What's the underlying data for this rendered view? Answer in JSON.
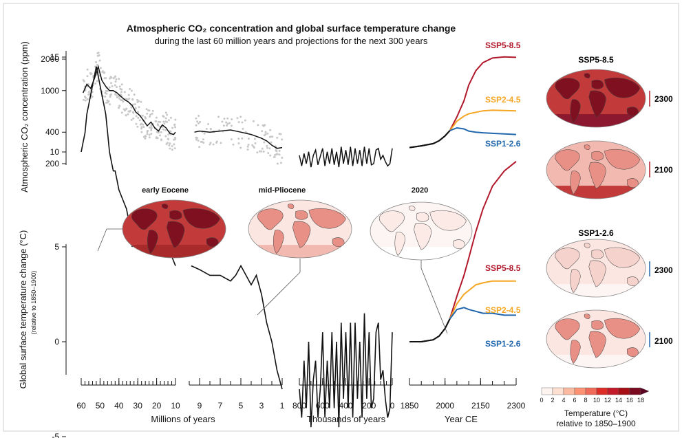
{
  "colors": {
    "ssp585": "#b2182b",
    "ssp245": "#f5a623",
    "ssp126": "#2166ac",
    "line": "#111111",
    "scatter": "#c8c8c8",
    "ocean_warm": "#c33a3a",
    "land_warm": "#7f1020",
    "ocean_mild": "#f2b9b0",
    "land_mild": "#e88f86",
    "ocean_cool": "#fbe6e2",
    "land_cool": "#f5d2cc",
    "ocean_none": "#fdf5f3",
    "land_none": "#fbeae6"
  },
  "figure": {
    "title_line1": "Atmospheric CO₂ concentration and global surface temperature change",
    "title_line2": "during the last 60 million years and projections for the next 300 years",
    "co2_ylabel": "Atmospheric CO₂ concentration (ppm)",
    "temp_ylabel": "Global surface temperature change (°C)",
    "temp_ylabel_sub": "(relative to 1850–1900)",
    "panel_xlabels": [
      "Millions of years",
      "Thousands of years",
      "Year CE"
    ],
    "maps": {
      "early_eocene": "early Eocene",
      "mid_pliocene": "mid-Pliocene",
      "y2020": "2020",
      "ssp585_header": "SSP5-8.5",
      "ssp126_header": "SSP1-2.6",
      "y2300": "2300",
      "y2100": "2100"
    },
    "colorbar": {
      "ticks": [
        "0",
        "2",
        "4",
        "6",
        "8",
        "10",
        "12",
        "14",
        "16",
        "18"
      ],
      "title": "Temperature (°C)",
      "subtitle": "relative to 1850–1900"
    }
  },
  "chart_data": [
    {
      "type": "line",
      "title": "Atmospheric CO₂ concentration and global surface temperature change",
      "subtitle": "during the last 60 million years and projections for the next 300 years",
      "ylabel": "Atmospheric CO₂ concentration (ppm)",
      "yscale": "log",
      "ylim": [
        180,
        2300
      ],
      "yticks": [
        200,
        400,
        1000,
        2000
      ],
      "panels": [
        {
          "xlabel": "Millions of years",
          "xlim": [
            60,
            10
          ],
          "x": [
            59,
            57,
            55,
            53,
            51,
            49,
            47,
            45,
            43,
            41,
            39,
            37,
            35,
            33,
            31,
            29,
            27,
            25,
            23,
            21,
            19,
            17,
            15,
            13,
            11,
            10
          ],
          "y": [
            950,
            1150,
            1050,
            1300,
            1700,
            1250,
            1100,
            1000,
            1000,
            950,
            880,
            820,
            780,
            720,
            620,
            580,
            520,
            460,
            500,
            440,
            410,
            470,
            440,
            390,
            380,
            400
          ],
          "scatter_series": "proxy"
        },
        {
          "xlabel": "Millions of years",
          "xlim": [
            10,
            1
          ],
          "xticks": [
            9,
            7,
            5,
            3,
            1
          ],
          "x": [
            9.5,
            9,
            8,
            7,
            6,
            5,
            4,
            3,
            2.5,
            2,
            1.5,
            1
          ],
          "y": [
            400,
            410,
            400,
            410,
            420,
            400,
            380,
            350,
            330,
            300,
            280,
            285
          ],
          "scatter_series": "proxy"
        },
        {
          "xlabel": "Thousands of years",
          "xlim": [
            800,
            0
          ],
          "xticks": [
            800,
            600,
            400,
            200,
            0
          ],
          "x": [
            800,
            780,
            760,
            740,
            720,
            700,
            680,
            660,
            640,
            620,
            600,
            580,
            560,
            540,
            520,
            500,
            480,
            460,
            440,
            420,
            400,
            380,
            360,
            340,
            320,
            300,
            280,
            260,
            240,
            220,
            200,
            180,
            160,
            140,
            120,
            100,
            80,
            60,
            40,
            20,
            0
          ],
          "y": [
            240,
            190,
            250,
            200,
            260,
            185,
            240,
            270,
            195,
            235,
            280,
            190,
            260,
            200,
            280,
            195,
            260,
            185,
            290,
            200,
            270,
            195,
            290,
            190,
            280,
            200,
            270,
            190,
            290,
            200,
            280,
            195,
            200,
            270,
            280,
            220,
            240,
            210,
            190,
            200,
            280
          ]
        },
        {
          "xlabel": "Year CE",
          "xlim": [
            1850,
            2300
          ],
          "xticks": [
            1850,
            2000,
            2150,
            2300
          ],
          "series": [
            {
              "name": "SSP5-8.5",
              "x": [
                1850,
                1900,
                1950,
                1975,
                2000,
                2020,
                2050,
                2080,
                2100,
                2130,
                2160,
                2200,
                2250,
                2300
              ],
              "y": [
                285,
                296,
                311,
                331,
                369,
                414,
                560,
                800,
                1130,
                1550,
                1850,
                2050,
                2100,
                2080
              ]
            },
            {
              "name": "SSP2-4.5",
              "x": [
                1850,
                1900,
                1950,
                1975,
                2000,
                2020,
                2050,
                2080,
                2100,
                2130,
                2160,
                2200,
                2250,
                2300
              ],
              "y": [
                285,
                296,
                311,
                331,
                369,
                414,
                510,
                570,
                600,
                620,
                640,
                650,
                645,
                640
              ]
            },
            {
              "name": "SSP1-2.6",
              "x": [
                1850,
                1900,
                1950,
                1975,
                2000,
                2020,
                2050,
                2080,
                2100,
                2130,
                2160,
                2200,
                2250,
                2300
              ],
              "y": [
                285,
                296,
                311,
                331,
                369,
                414,
                440,
                430,
                410,
                400,
                395,
                390,
                385,
                380
              ]
            }
          ]
        }
      ]
    },
    {
      "type": "line",
      "ylabel": "Global surface temperature change (°C)",
      "ylabel_sub": "(relative to 1850–1900)",
      "ylim": [
        -5,
        16
      ],
      "yticks": [
        -5,
        0,
        5,
        10,
        15
      ],
      "panels": [
        {
          "xlabel": "Millions of years",
          "xlim": [
            60,
            10
          ],
          "xticks": [
            60,
            50,
            40,
            30,
            20,
            10
          ],
          "x": [
            60,
            59,
            58,
            57,
            56,
            55,
            54,
            53,
            52,
            51,
            50,
            49,
            48,
            47,
            46,
            45,
            44,
            43,
            42,
            41,
            40,
            38,
            36,
            34,
            33,
            32,
            30,
            28,
            26,
            24,
            22,
            20,
            18,
            16,
            15,
            14,
            12,
            10
          ],
          "y": [
            10,
            10.5,
            11,
            12,
            12.5,
            13,
            13.5,
            14,
            14.5,
            14,
            13.5,
            13,
            12.5,
            12,
            11,
            10,
            9.5,
            9,
            9,
            8.5,
            8,
            7.5,
            7,
            6,
            5,
            5.5,
            5.5,
            5,
            5.5,
            5,
            5.5,
            5,
            6.5,
            7,
            6,
            5.5,
            4.5,
            4
          ]
        },
        {
          "xlabel": "Millions of years",
          "xlim": [
            10,
            1
          ],
          "xticks": [
            9,
            7,
            5,
            3,
            1
          ],
          "x": [
            9.8,
            9,
            8,
            7,
            6,
            5.5,
            5,
            4.5,
            4,
            3.5,
            3,
            2.5,
            2,
            1.5,
            1
          ],
          "y": [
            4,
            3.8,
            3.5,
            3.5,
            3.2,
            3.5,
            4,
            3.5,
            3,
            3.5,
            2.5,
            1,
            0,
            -1.5,
            -2.5
          ]
        },
        {
          "xlabel": "Thousands of years",
          "xlim": [
            800,
            0
          ],
          "xticks": [
            800,
            600,
            400,
            200,
            0
          ],
          "x": [
            800,
            780,
            760,
            740,
            720,
            700,
            680,
            660,
            640,
            620,
            600,
            580,
            560,
            540,
            520,
            500,
            480,
            460,
            440,
            420,
            400,
            380,
            360,
            340,
            320,
            300,
            280,
            260,
            240,
            220,
            200,
            180,
            160,
            140,
            120,
            100,
            80,
            60,
            40,
            20,
            0
          ],
          "y": [
            -2.5,
            -4,
            -1,
            -3.5,
            0,
            -4.5,
            -2,
            -1,
            -4,
            -2.5,
            0.5,
            -4,
            -1,
            -3.5,
            0.5,
            -3.5,
            0,
            -4.5,
            1,
            -3,
            0.5,
            -3.5,
            1,
            -4,
            1,
            -3,
            0,
            -4,
            1.5,
            -3,
            0.5,
            -3.5,
            -3,
            0.5,
            1,
            -2,
            -1.5,
            -3,
            -4,
            -3.5,
            0.5
          ]
        },
        {
          "xlabel": "Year CE",
          "xlim": [
            1850,
            2300
          ],
          "xticks": [
            1850,
            2000,
            2150,
            2300
          ],
          "series": [
            {
              "name": "SSP5-8.5",
              "x": [
                1850,
                1900,
                1950,
                1975,
                2000,
                2020,
                2050,
                2080,
                2100,
                2130,
                2160,
                2200,
                2250,
                2300
              ],
              "y": [
                0,
                0,
                0.1,
                0.3,
                0.7,
                1.2,
                2.4,
                3.5,
                4.4,
                5.8,
                7.0,
                8.2,
                9.0,
                9.5
              ]
            },
            {
              "name": "SSP2-4.5",
              "x": [
                1850,
                1900,
                1950,
                1975,
                2000,
                2020,
                2050,
                2080,
                2100,
                2130,
                2160,
                2200,
                2250,
                2300
              ],
              "y": [
                0,
                0,
                0.1,
                0.3,
                0.7,
                1.2,
                2.0,
                2.5,
                2.7,
                3.0,
                3.1,
                3.2,
                3.2,
                3.2
              ]
            },
            {
              "name": "SSP1-2.6",
              "x": [
                1850,
                1900,
                1950,
                1975,
                2000,
                2020,
                2050,
                2080,
                2100,
                2130,
                2160,
                2200,
                2250,
                2300
              ],
              "y": [
                0,
                0,
                0.1,
                0.3,
                0.7,
                1.2,
                1.7,
                1.8,
                1.7,
                1.6,
                1.5,
                1.5,
                1.4,
                1.4
              ]
            }
          ]
        }
      ]
    }
  ]
}
